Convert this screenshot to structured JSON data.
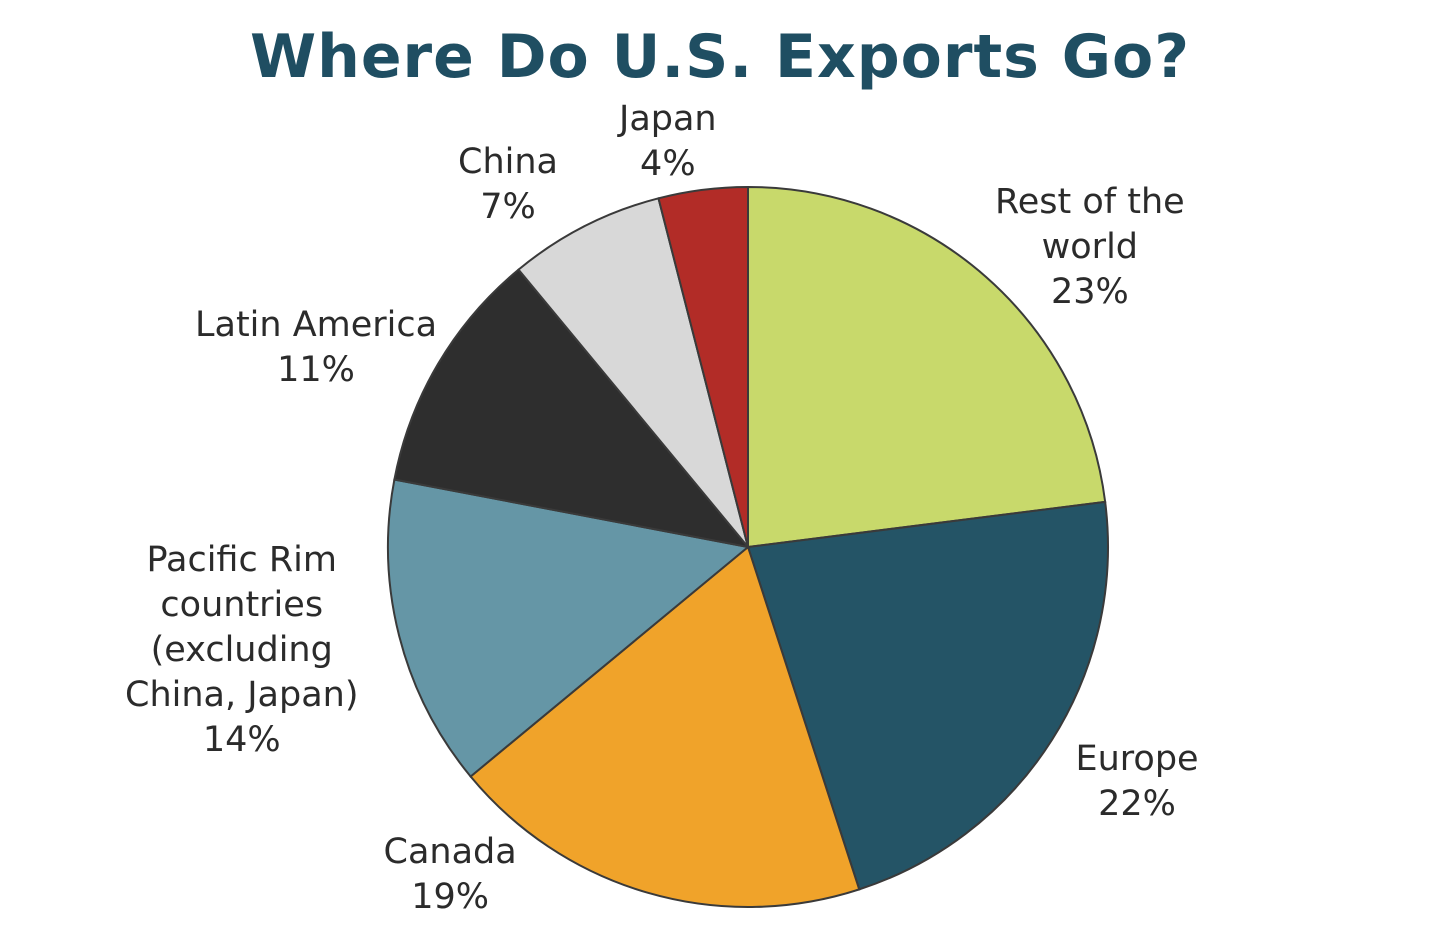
{
  "chart_data": {
    "type": "pie",
    "title": "Where Do U.S. Exports Go?",
    "slices": [
      {
        "label_lines": [
          "Rest of the",
          "world"
        ],
        "value_label": "23%",
        "value": 23,
        "color": "#c8d96b"
      },
      {
        "label_lines": [
          "Europe"
        ],
        "value_label": "22%",
        "value": 22,
        "color": "#245466"
      },
      {
        "label_lines": [
          "Canada"
        ],
        "value_label": "19%",
        "value": 19,
        "color": "#f0a32a"
      },
      {
        "label_lines": [
          "Pacific Rim",
          "countries",
          "(excluding",
          "China, Japan)"
        ],
        "value_label": "14%",
        "value": 14,
        "color": "#6596a6"
      },
      {
        "label_lines": [
          "Latin America"
        ],
        "value_label": "11%",
        "value": 11,
        "color": "#2e2e2e"
      },
      {
        "label_lines": [
          "China"
        ],
        "value_label": "7%",
        "value": 7,
        "color": "#d8d8d8"
      },
      {
        "label_lines": [
          "Japan"
        ],
        "value_label": "4%",
        "value": 4,
        "color": "#b22c27"
      }
    ]
  }
}
